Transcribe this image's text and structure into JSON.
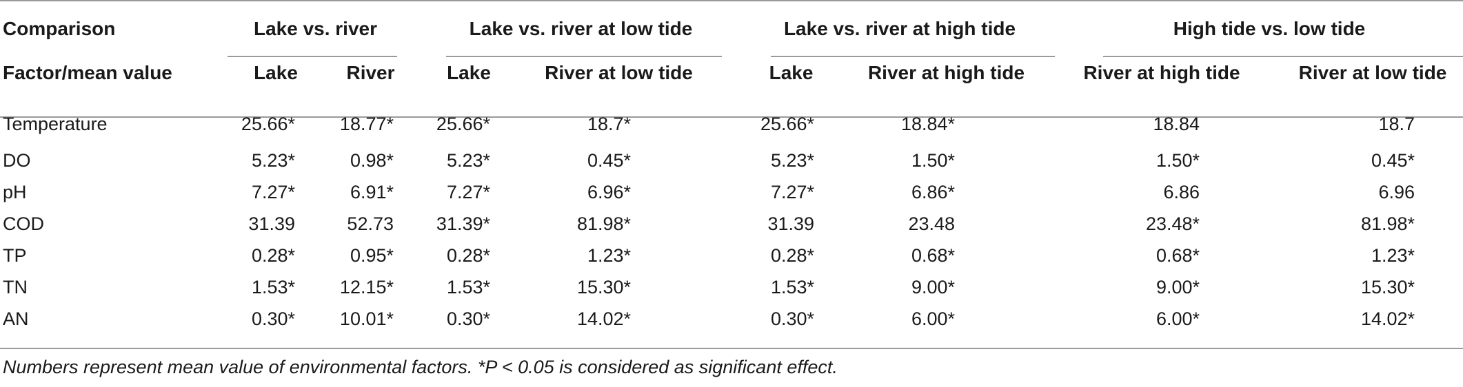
{
  "table": {
    "group_headers": {
      "comparison": "Comparison",
      "g1": "Lake vs. river",
      "g2": "Lake vs. river at low tide",
      "g3": "Lake vs. river at high tide",
      "g4": "High tide vs. low tide"
    },
    "sub_headers": {
      "factor": "Factor/mean value",
      "c1": "Lake",
      "c2": "River",
      "c3": "Lake",
      "c4": "River at low tide",
      "c5": "Lake",
      "c6": "River at high tide",
      "c7": "River at high tide",
      "c8": "River at low tide"
    },
    "rows": [
      {
        "factor": "Temperature",
        "v": [
          "25.66*",
          "18.77*",
          "25.66*",
          "18.7*",
          "25.66*",
          "18.84*",
          "18.84",
          "18.7"
        ]
      },
      {
        "factor": "DO",
        "v": [
          "5.23*",
          "0.98*",
          "5.23*",
          "0.45*",
          "5.23*",
          "1.50*",
          "1.50*",
          "0.45*"
        ]
      },
      {
        "factor": "pH",
        "v": [
          "7.27*",
          "6.91*",
          "7.27*",
          "6.96*",
          "7.27*",
          "6.86*",
          "6.86",
          "6.96"
        ]
      },
      {
        "factor": "COD",
        "v": [
          "31.39",
          "52.73",
          "31.39*",
          "81.98*",
          "31.39",
          "23.48",
          "23.48*",
          "81.98*"
        ]
      },
      {
        "factor": "TP",
        "v": [
          "0.28*",
          "0.95*",
          "0.28*",
          "1.23*",
          "0.28*",
          "0.68*",
          "0.68*",
          "1.23*"
        ]
      },
      {
        "factor": "TN",
        "v": [
          "1.53*",
          "12.15*",
          "1.53*",
          "15.30*",
          "1.53*",
          "9.00*",
          "9.00*",
          "15.30*"
        ]
      },
      {
        "factor": "AN",
        "v": [
          "0.30*",
          "10.01*",
          "0.30*",
          "14.02*",
          "0.30*",
          "6.00*",
          "6.00*",
          "14.02*"
        ]
      }
    ]
  },
  "footnote": "Numbers represent mean value of environmental factors. *P < 0.05 is considered as significant effect."
}
